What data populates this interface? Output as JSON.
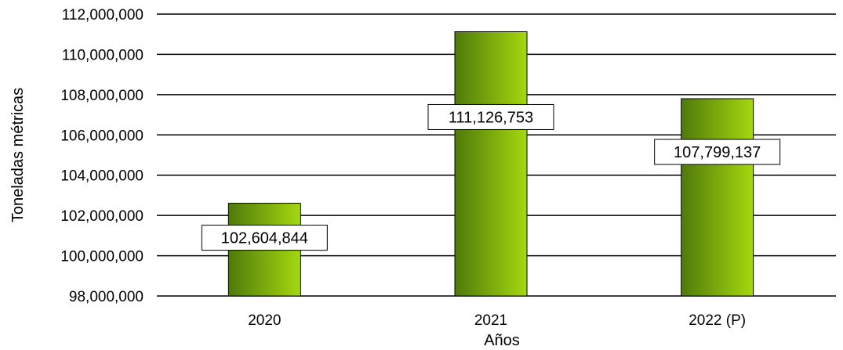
{
  "chart_data": {
    "type": "bar",
    "title": "",
    "xlabel": "Años",
    "ylabel": "Toneladas métricas",
    "categories": [
      "2020",
      "2021",
      "2022 (P)"
    ],
    "values": [
      102604844,
      111126753,
      107799137
    ],
    "data_labels": [
      "102,604,844",
      "111,126,753",
      "107,799,137"
    ],
    "ylim": [
      98000000,
      112000000
    ],
    "y_ticks": [
      98000000,
      100000000,
      102000000,
      104000000,
      106000000,
      108000000,
      110000000,
      112000000
    ],
    "y_tick_labels": [
      "98,000,000",
      "100,000,000",
      "102,000,000",
      "104,000,000",
      "106,000,000",
      "108,000,000",
      "110,000,000",
      "112,000,000"
    ],
    "grid": true,
    "legend": "none",
    "colors": {
      "bar_dark": "#4f7a0a",
      "bar_light": "#a6d80e",
      "grid": "#000000"
    }
  }
}
